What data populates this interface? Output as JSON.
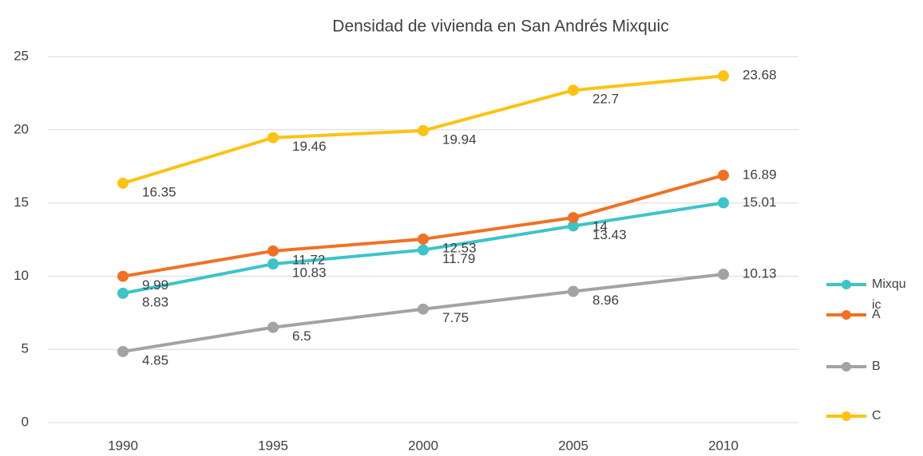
{
  "chart_data": {
    "type": "line",
    "title": "Densidad de vivienda en San Andrés Mixquic",
    "categories": [
      "1990",
      "1995",
      "2000",
      "2005",
      "2010"
    ],
    "series": [
      {
        "name": "Mixquic",
        "color": "#3cc4c9",
        "values": [
          8.83,
          10.83,
          11.79,
          13.43,
          15.01
        ]
      },
      {
        "name": "A",
        "color": "#f07124",
        "values": [
          9.99,
          11.72,
          12.53,
          14,
          16.89
        ]
      },
      {
        "name": "B",
        "color": "#a3a3a3",
        "values": [
          4.85,
          6.5,
          7.75,
          8.96,
          10.13
        ]
      },
      {
        "name": "C",
        "color": "#fec211",
        "values": [
          16.35,
          19.46,
          19.94,
          22.7,
          23.68
        ]
      }
    ],
    "ylim": [
      0,
      25
    ],
    "yticks": [
      0,
      5,
      10,
      15,
      20,
      25
    ],
    "grid": true,
    "legend": "right"
  }
}
